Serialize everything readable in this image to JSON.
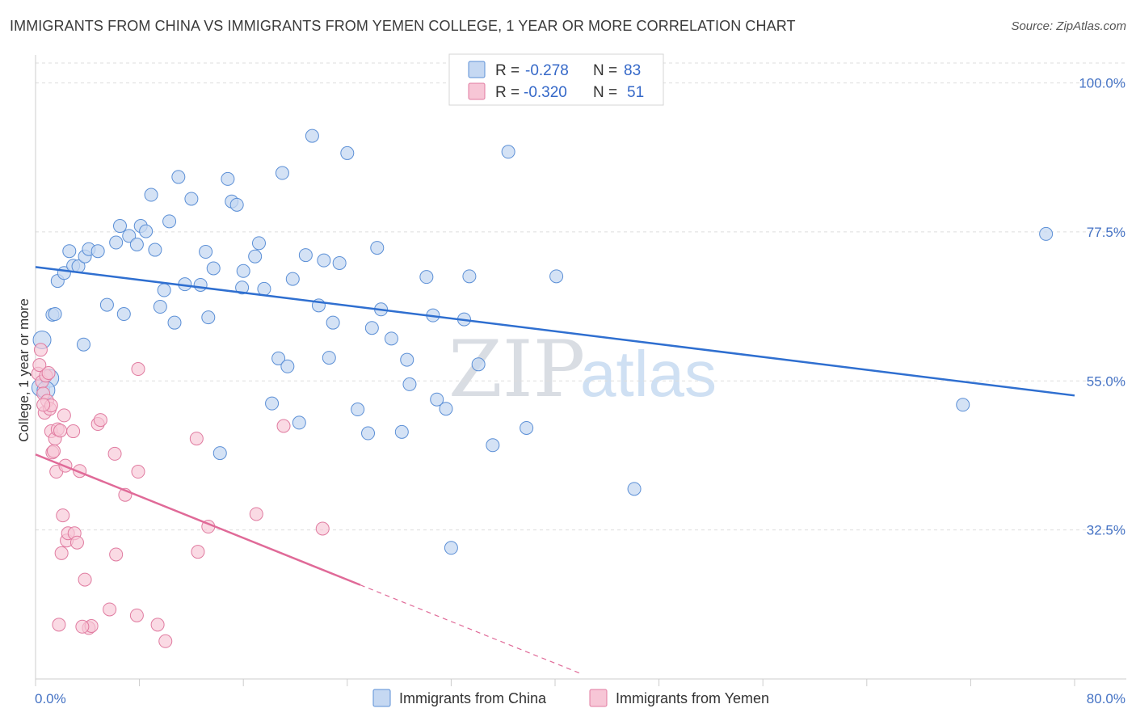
{
  "title": "IMMIGRANTS FROM CHINA VS IMMIGRANTS FROM YEMEN COLLEGE, 1 YEAR OR MORE CORRELATION CHART",
  "source": "Source: ZipAtlas.com",
  "watermark": {
    "zip": "ZIP",
    "atlas": "atlas"
  },
  "colors": {
    "china": "#5b8fd6",
    "china_fill": "#c5d8f2",
    "yemen": "#e07ba0",
    "yemen_fill": "#f7c6d6",
    "china_line": "#2f6fd0",
    "yemen_line": "#e06a98"
  },
  "legend": {
    "r_label": "R =",
    "n_label": "N =",
    "china": {
      "r": "-0.278",
      "n": "83"
    },
    "yemen": {
      "r": "-0.320",
      "n": "51"
    }
  },
  "chart_data": {
    "type": "scatter",
    "title": "IMMIGRANTS FROM CHINA VS IMMIGRANTS FROM YEMEN COLLEGE, 1 YEAR OR MORE CORRELATION CHART",
    "xlabel": "",
    "ylabel": "College, 1 year or more",
    "xlim": [
      0,
      80
    ],
    "ylim": [
      10,
      103
    ],
    "x_tick_labels": [
      "0.0%",
      "80.0%"
    ],
    "y_ticks": [
      32.5,
      55.0,
      77.5,
      100.0
    ],
    "y_tick_labels": [
      "32.5%",
      "55.0%",
      "77.5%",
      "100.0%"
    ],
    "series": [
      {
        "name": "Immigrants from China",
        "points": [
          [
            0.5,
            61.2
          ],
          [
            1.3,
            65.0
          ],
          [
            1.5,
            65.1
          ],
          [
            1.7,
            70.1
          ],
          [
            2.2,
            71.3
          ],
          [
            2.6,
            74.6
          ],
          [
            2.9,
            72.4
          ],
          [
            3.3,
            72.3
          ],
          [
            3.7,
            60.5
          ],
          [
            3.8,
            73.8
          ],
          [
            4.1,
            74.9
          ],
          [
            4.8,
            74.6
          ],
          [
            5.5,
            66.5
          ],
          [
            6.2,
            75.9
          ],
          [
            6.5,
            78.4
          ],
          [
            6.8,
            65.1
          ],
          [
            7.2,
            76.9
          ],
          [
            7.8,
            75.6
          ],
          [
            8.1,
            78.4
          ],
          [
            8.5,
            77.6
          ],
          [
            8.9,
            83.1
          ],
          [
            9.2,
            74.8
          ],
          [
            9.6,
            66.2
          ],
          [
            9.9,
            68.7
          ],
          [
            10.3,
            79.1
          ],
          [
            10.7,
            63.8
          ],
          [
            11.0,
            85.8
          ],
          [
            11.5,
            69.6
          ],
          [
            12.0,
            82.5
          ],
          [
            12.7,
            69.5
          ],
          [
            13.1,
            74.5
          ],
          [
            13.3,
            64.6
          ],
          [
            13.7,
            72.0
          ],
          [
            14.2,
            44.1
          ],
          [
            14.8,
            85.5
          ],
          [
            15.1,
            82.1
          ],
          [
            15.5,
            81.6
          ],
          [
            15.9,
            69.1
          ],
          [
            16.0,
            71.6
          ],
          [
            16.9,
            73.8
          ],
          [
            17.2,
            75.8
          ],
          [
            17.6,
            68.9
          ],
          [
            18.2,
            51.6
          ],
          [
            18.7,
            58.4
          ],
          [
            19.0,
            86.4
          ],
          [
            19.4,
            57.2
          ],
          [
            19.8,
            70.4
          ],
          [
            20.3,
            48.7
          ],
          [
            20.8,
            74.0
          ],
          [
            21.3,
            92.0
          ],
          [
            21.8,
            66.4
          ],
          [
            22.2,
            73.2
          ],
          [
            22.6,
            58.5
          ],
          [
            22.9,
            63.8
          ],
          [
            23.4,
            72.8
          ],
          [
            24.0,
            89.4
          ],
          [
            24.8,
            50.7
          ],
          [
            25.6,
            47.1
          ],
          [
            25.9,
            63.0
          ],
          [
            26.3,
            75.1
          ],
          [
            26.6,
            65.8
          ],
          [
            27.4,
            61.4
          ],
          [
            28.2,
            47.3
          ],
          [
            28.6,
            58.2
          ],
          [
            28.8,
            54.5
          ],
          [
            30.1,
            70.7
          ],
          [
            30.6,
            64.9
          ],
          [
            30.9,
            52.2
          ],
          [
            31.6,
            50.8
          ],
          [
            32.0,
            29.8
          ],
          [
            33.0,
            64.3
          ],
          [
            33.4,
            70.8
          ],
          [
            34.1,
            57.5
          ],
          [
            35.2,
            45.3
          ],
          [
            36.4,
            89.6
          ],
          [
            37.8,
            47.9
          ],
          [
            40.1,
            70.8
          ],
          [
            46.1,
            38.7
          ],
          [
            71.4,
            51.4
          ],
          [
            77.8,
            77.2
          ],
          [
            0.4,
            54.0
          ],
          [
            1.1,
            55.4
          ],
          [
            0.8,
            53.6
          ]
        ]
      },
      {
        "name": "Immigrants from Yemen",
        "points": [
          [
            0.2,
            56.1
          ],
          [
            0.3,
            57.4
          ],
          [
            0.4,
            59.7
          ],
          [
            0.5,
            54.9
          ],
          [
            0.6,
            53.1
          ],
          [
            0.7,
            50.2
          ],
          [
            0.8,
            55.8
          ],
          [
            0.9,
            52.0
          ],
          [
            1.0,
            56.2
          ],
          [
            1.1,
            50.8
          ],
          [
            1.2,
            47.4
          ],
          [
            1.3,
            44.2
          ],
          [
            1.4,
            44.4
          ],
          [
            1.5,
            46.3
          ],
          [
            1.6,
            41.3
          ],
          [
            1.7,
            47.7
          ],
          [
            1.8,
            18.2
          ],
          [
            1.9,
            47.5
          ],
          [
            2.0,
            29.0
          ],
          [
            2.1,
            34.7
          ],
          [
            2.2,
            49.8
          ],
          [
            2.3,
            42.2
          ],
          [
            2.4,
            30.9
          ],
          [
            2.5,
            32.0
          ],
          [
            2.9,
            47.4
          ],
          [
            3.0,
            32.0
          ],
          [
            3.2,
            30.6
          ],
          [
            3.4,
            41.4
          ],
          [
            3.8,
            25.0
          ],
          [
            4.1,
            17.7
          ],
          [
            4.3,
            18.0
          ],
          [
            4.8,
            48.5
          ],
          [
            5.0,
            49.1
          ],
          [
            5.7,
            20.5
          ],
          [
            6.1,
            44.0
          ],
          [
            6.2,
            28.8
          ],
          [
            6.9,
            37.8
          ],
          [
            7.8,
            19.6
          ],
          [
            7.9,
            41.3
          ],
          [
            7.9,
            56.8
          ],
          [
            9.4,
            18.2
          ],
          [
            10.0,
            15.7
          ],
          [
            12.4,
            46.3
          ],
          [
            12.5,
            29.2
          ],
          [
            13.3,
            33.0
          ],
          [
            17.0,
            34.9
          ],
          [
            19.1,
            48.2
          ],
          [
            22.1,
            32.7
          ],
          [
            3.6,
            17.9
          ],
          [
            1.2,
            51.3
          ],
          [
            0.6,
            51.4
          ]
        ]
      }
    ],
    "trend_lines": [
      {
        "name": "Immigrants from China",
        "x": [
          0,
          80
        ],
        "y": [
          72.2,
          52.8
        ]
      },
      {
        "name": "Immigrants from Yemen",
        "x": [
          0,
          25
        ],
        "y": [
          43.9,
          24.2
        ],
        "dashed_to": [
          42,
          10.8
        ]
      }
    ]
  },
  "axes": {
    "ylabel": "College, 1 year or more"
  },
  "bottom_legend": [
    "Immigrants from China",
    "Immigrants from Yemen"
  ]
}
